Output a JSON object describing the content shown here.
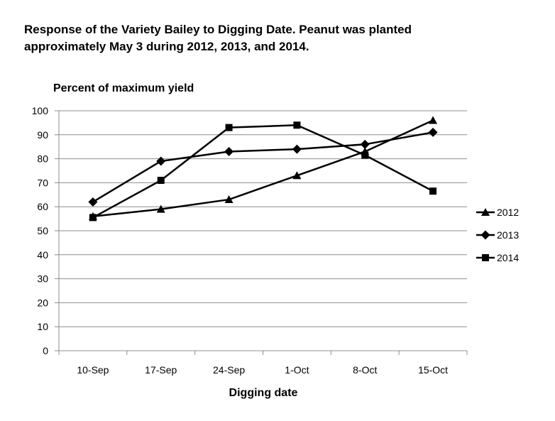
{
  "title_line1": "Response of the Variety Bailey  to Digging  Date.  Peanut was planted",
  "title_line2": "approximately May 3 during 2012, 2013, and 2014.",
  "chart_data": {
    "type": "line",
    "title": "Response of the Variety Bailey to Digging Date. Peanut was planted approximately May 3 during 2012, 2013, and 2014.",
    "xlabel": "Digging date",
    "ylabel": "Percent of maximum yield",
    "categories": [
      "10-Sep",
      "17-Sep",
      "24-Sep",
      "1-Oct",
      "8-Oct",
      "15-Oct"
    ],
    "ylim": [
      0,
      100
    ],
    "yticks": [
      0,
      10,
      20,
      30,
      40,
      50,
      60,
      70,
      80,
      90,
      100
    ],
    "grid": true,
    "legend_position": "right",
    "series": [
      {
        "name": "2012",
        "marker": "triangle",
        "color": "#000000",
        "values": [
          56,
          59,
          63,
          73,
          83,
          96
        ]
      },
      {
        "name": "2013",
        "marker": "diamond",
        "color": "#000000",
        "values": [
          62,
          79,
          83,
          84,
          86,
          91
        ]
      },
      {
        "name": "2014",
        "marker": "square",
        "color": "#000000",
        "values": [
          55.5,
          71,
          93,
          94,
          81.5,
          66.5
        ]
      }
    ]
  }
}
